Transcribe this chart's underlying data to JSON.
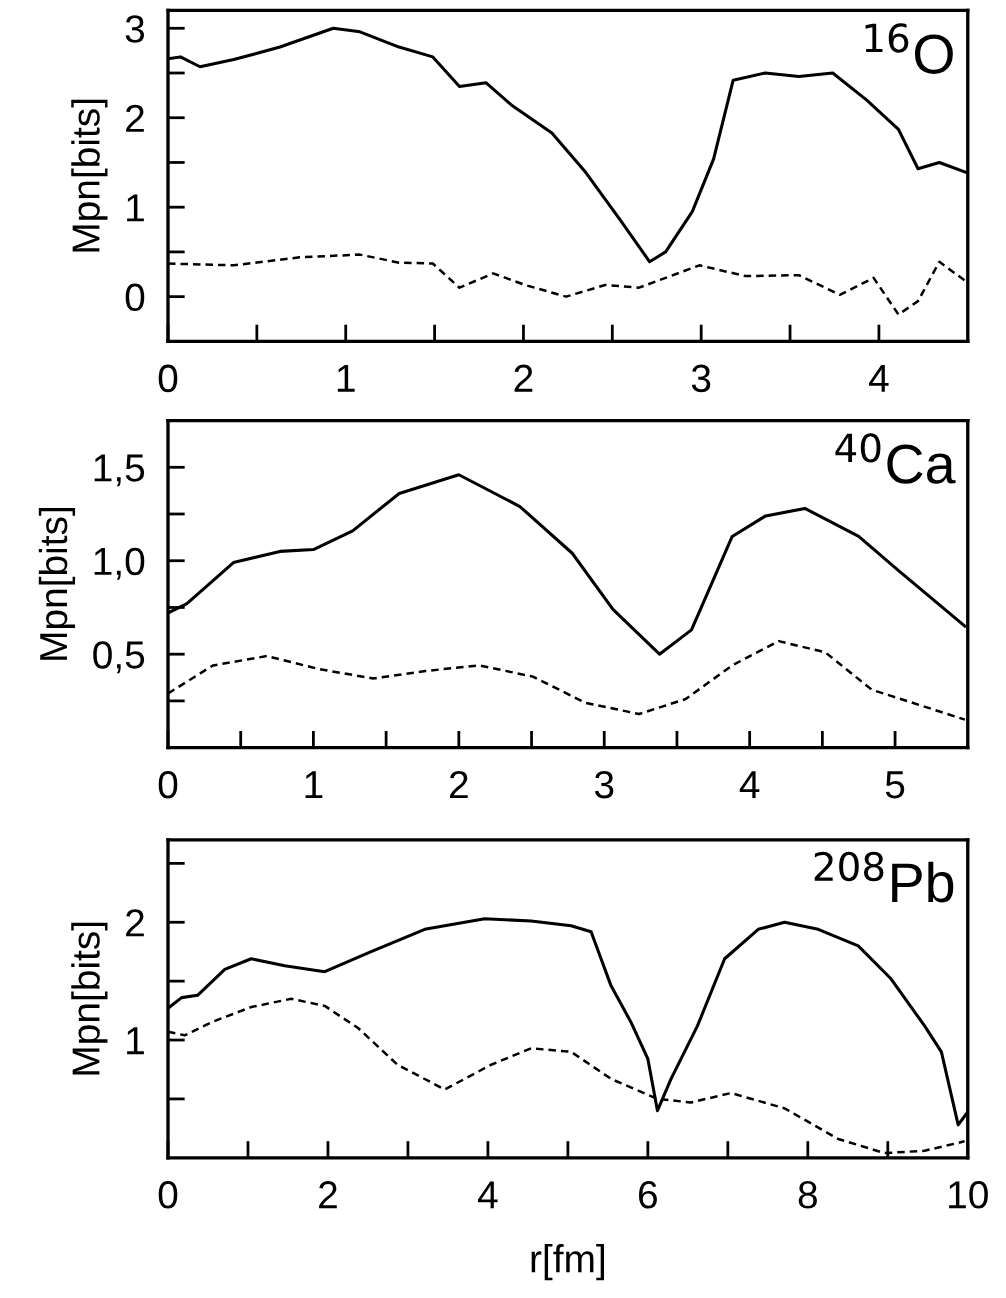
{
  "chart_data": [
    {
      "type": "line",
      "ylabel": "Mpn[bits]",
      "annotations": [
        "$^{16}$O"
      ],
      "xlim": [
        0,
        4.5
      ],
      "ylim": [
        -0.5,
        3.2
      ],
      "xticks": [
        0,
        {
          "value": 0.5,
          "label": null
        },
        1,
        {
          "value": 1.5,
          "label": null
        },
        2,
        {
          "value": 2.5,
          "label": null
        },
        3,
        {
          "value": 3.5,
          "label": null
        },
        4
      ],
      "yticks": [
        {
          "value": -0.5,
          "label": null
        },
        0,
        {
          "value": 0.5,
          "label": null
        },
        1,
        {
          "value": 1.5,
          "label": null
        },
        2,
        {
          "value": 2.5,
          "label": null
        },
        3
      ],
      "grid": false,
      "legend": false,
      "series": [
        {
          "color": "#000000",
          "line_style": "solid",
          "x": [
            0,
            0.07,
            0.18,
            0.37,
            0.63,
            0.93,
            1.08,
            1.3,
            1.49,
            1.64,
            1.79,
            1.94,
            2.16,
            2.35,
            2.54,
            2.71,
            2.8,
            2.95,
            3.07,
            3.18,
            3.36,
            3.55,
            3.74,
            3.93,
            4.11,
            4.22,
            4.34,
            4.49
          ],
          "values": [
            2.66,
            2.68,
            2.57,
            2.65,
            2.79,
            3.0,
            2.96,
            2.79,
            2.68,
            2.35,
            2.39,
            2.13,
            1.83,
            1.39,
            0.87,
            0.39,
            0.5,
            0.95,
            1.54,
            2.42,
            2.5,
            2.46,
            2.5,
            2.2,
            1.87,
            1.43,
            1.5,
            1.39
          ]
        },
        {
          "color": "#000000",
          "line_style": "dashed",
          "x": [
            0,
            0.37,
            0.74,
            1.08,
            1.3,
            1.49,
            1.64,
            1.83,
            2.01,
            2.24,
            2.46,
            2.65,
            2.99,
            3.25,
            3.55,
            3.78,
            3.97,
            4.11,
            4.22,
            4.34,
            4.49
          ],
          "values": [
            0.37,
            0.35,
            0.44,
            0.47,
            0.38,
            0.37,
            0.1,
            0.26,
            0.13,
            0,
            0.13,
            0.1,
            0.35,
            0.23,
            0.24,
            0.02,
            0.21,
            -0.2,
            -0.05,
            0.39,
            0.17
          ]
        }
      ]
    },
    {
      "type": "line",
      "ylabel": "Mpn[bits]",
      "annotations": [
        "$^{40}$Ca"
      ],
      "xlim": [
        0,
        5.5
      ],
      "ylim": [
        0,
        1.75
      ],
      "xticks": [
        0,
        {
          "value": 0.5,
          "label": null
        },
        1,
        {
          "value": 1.5,
          "label": null
        },
        2,
        {
          "value": 2.5,
          "label": null
        },
        3,
        {
          "value": 3.5,
          "label": null
        },
        4,
        {
          "value": 4.5,
          "label": null
        },
        5
      ],
      "yticks": [
        {
          "value": 0.25,
          "label": null
        },
        {
          "value": 0.5,
          "label": "0,5"
        },
        {
          "value": 0.75,
          "label": null
        },
        {
          "value": 1.0,
          "label": "1,0"
        },
        {
          "value": 1.25,
          "label": null
        },
        {
          "value": 1.5,
          "label": "1,5"
        }
      ],
      "grid": false,
      "legend": false,
      "series": [
        {
          "color": "#000000",
          "line_style": "solid",
          "x": [
            0,
            0.13,
            0.45,
            0.77,
            1.0,
            1.27,
            1.59,
            2.0,
            2.42,
            2.78,
            3.06,
            3.38,
            3.6,
            3.88,
            4.11,
            4.38,
            4.75,
            5.02,
            5.48
          ],
          "values": [
            0.72,
            0.77,
            0.99,
            1.05,
            1.06,
            1.16,
            1.36,
            1.46,
            1.29,
            1.04,
            0.74,
            0.5,
            0.63,
            1.13,
            1.24,
            1.28,
            1.13,
            0.95,
            0.65
          ]
        },
        {
          "color": "#000000",
          "line_style": "dashed",
          "x": [
            0,
            0.31,
            0.68,
            1.04,
            1.41,
            1.77,
            2.14,
            2.51,
            2.87,
            3.24,
            3.56,
            3.88,
            4.2,
            4.52,
            4.84,
            5.48
          ],
          "values": [
            0.29,
            0.44,
            0.49,
            0.42,
            0.37,
            0.41,
            0.44,
            0.38,
            0.24,
            0.18,
            0.26,
            0.44,
            0.57,
            0.51,
            0.31,
            0.15
          ]
        }
      ]
    },
    {
      "type": "line",
      "xlabel": "r[fm]",
      "ylabel": "Mpn[bits]",
      "annotations": [
        "$^{208}$Pb"
      ],
      "xlim": [
        0,
        10
      ],
      "ylim": [
        0,
        2.7
      ],
      "xticks": [
        0,
        {
          "value": 1,
          "label": null
        },
        2,
        {
          "value": 3,
          "label": null
        },
        4,
        {
          "value": 5,
          "label": null
        },
        6,
        {
          "value": 7,
          "label": null
        },
        8,
        {
          "value": 9,
          "label": null
        },
        10
      ],
      "yticks": [
        {
          "value": 0.5,
          "label": null
        },
        1,
        {
          "value": 1.5,
          "label": null
        },
        2,
        {
          "value": 2.5,
          "label": null
        }
      ],
      "grid": false,
      "legend": false,
      "series": [
        {
          "color": "#000000",
          "line_style": "solid",
          "x": [
            0,
            0.17,
            0.37,
            0.71,
            1.04,
            1.46,
            1.96,
            2.54,
            3.21,
            3.96,
            4.54,
            5.04,
            5.29,
            5.54,
            5.79,
            6.0,
            6.12,
            6.29,
            6.62,
            6.96,
            7.38,
            7.71,
            8.13,
            8.63,
            9.04,
            9.46,
            9.67,
            9.88,
            10
          ],
          "values": [
            1.27,
            1.36,
            1.38,
            1.6,
            1.69,
            1.63,
            1.58,
            1.75,
            1.94,
            2.03,
            2.01,
            1.97,
            1.92,
            1.46,
            1.15,
            0.84,
            0.4,
            0.67,
            1.12,
            1.69,
            1.94,
            2.0,
            1.94,
            1.8,
            1.52,
            1.12,
            0.9,
            0.28,
            0.39
          ]
        },
        {
          "color": "#000000",
          "line_style": "dashed",
          "x": [
            0,
            0.21,
            0.54,
            1.04,
            1.54,
            1.96,
            2.38,
            2.87,
            3.46,
            4.04,
            4.54,
            5.04,
            5.54,
            6.12,
            6.54,
            7.04,
            7.71,
            8.38,
            8.96,
            9.46,
            9.96
          ],
          "values": [
            1.07,
            1.04,
            1.15,
            1.28,
            1.35,
            1.29,
            1.1,
            0.79,
            0.58,
            0.79,
            0.93,
            0.9,
            0.67,
            0.5,
            0.47,
            0.55,
            0.42,
            0.16,
            0.04,
            0.06,
            0.14
          ]
        }
      ]
    }
  ]
}
